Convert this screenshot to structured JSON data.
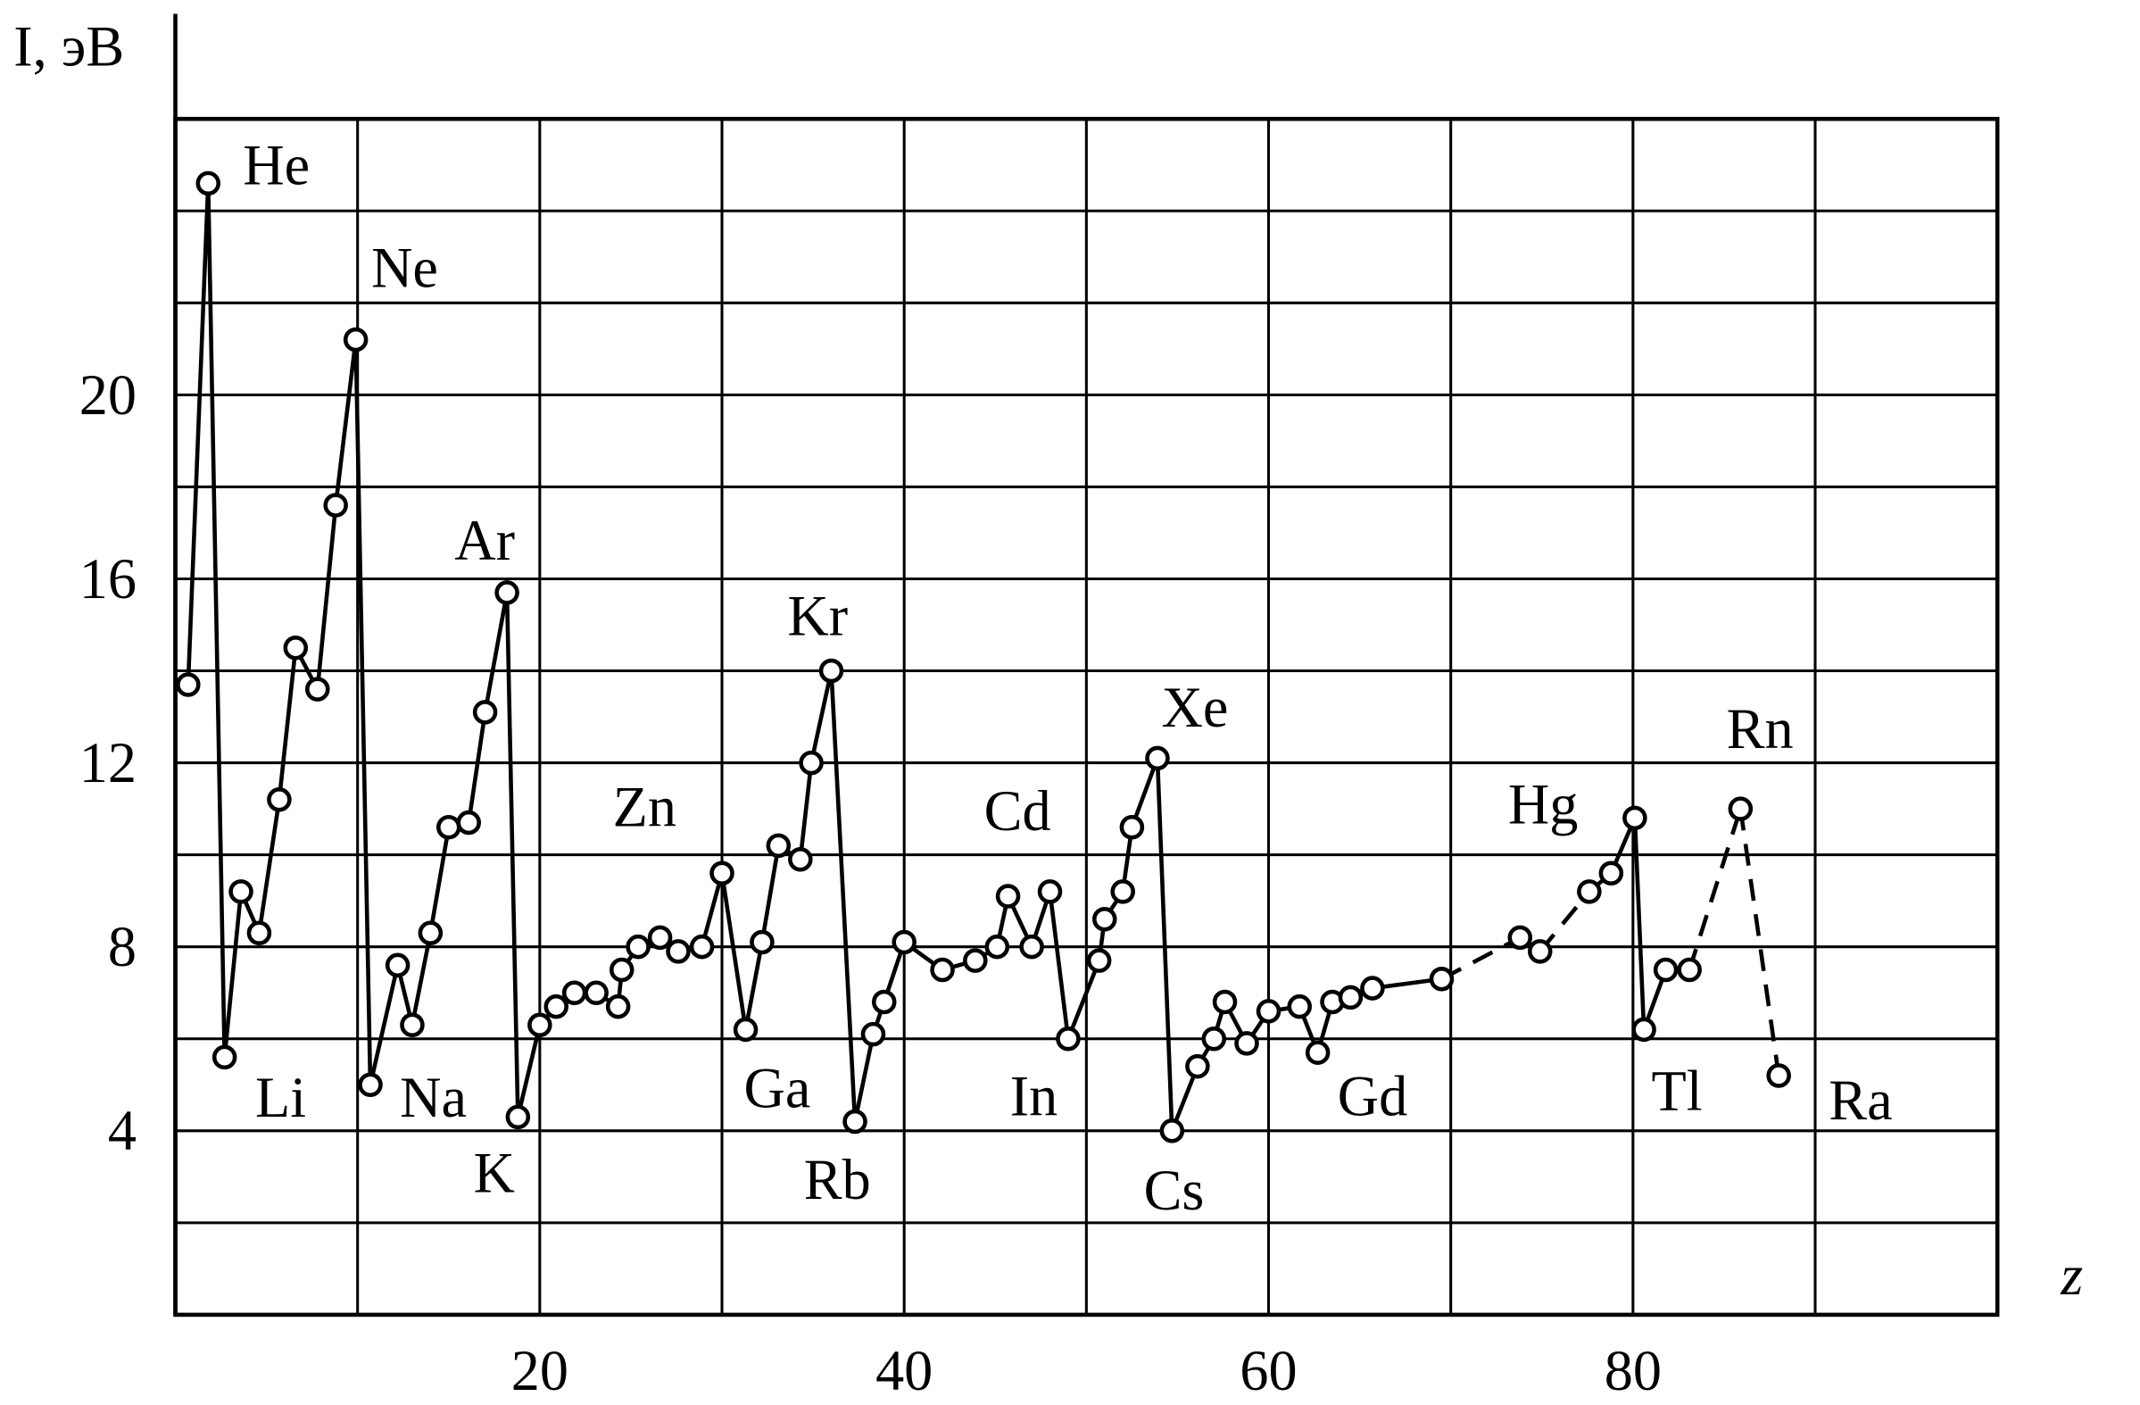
{
  "chart_data": {
    "type": "line",
    "ylabel": "I, эВ",
    "xlabel": "z",
    "x": [
      0.7,
      1.8,
      2.7,
      3.6,
      4.6,
      5.7,
      6.6,
      7.8,
      8.8,
      9.9,
      10.7,
      12.2,
      13.0,
      14.0,
      15.0,
      16.1,
      17.0,
      18.2,
      18.8,
      20.0,
      20.9,
      21.9,
      23.1,
      24.3,
      24.5,
      25.4,
      26.6,
      27.6,
      28.9,
      30.0,
      31.3,
      32.2,
      33.1,
      34.3,
      34.9,
      36.0,
      37.3,
      38.3,
      38.9,
      40.0,
      42.1,
      43.9,
      45.1,
      45.7,
      47.0,
      48.0,
      49.0,
      50.7,
      51.0,
      52.0,
      52.5,
      53.9,
      54.7,
      56.1,
      57.0,
      57.6,
      58.8,
      60.0,
      61.7,
      62.7,
      63.5,
      64.5,
      65.7,
      69.5,
      73.8,
      74.9,
      77.6,
      78.8,
      80.1,
      80.6,
      81.8,
      83.1,
      85.9,
      88.0
    ],
    "values": [
      13.7,
      24.6,
      5.6,
      9.2,
      8.3,
      11.2,
      14.5,
      13.6,
      17.6,
      21.2,
      5.0,
      7.6,
      6.3,
      8.3,
      10.6,
      10.7,
      13.1,
      15.7,
      4.3,
      6.3,
      6.7,
      7.0,
      7.0,
      6.7,
      7.5,
      8.0,
      8.2,
      7.9,
      8.0,
      9.6,
      6.2,
      8.1,
      10.2,
      9.9,
      12.0,
      14.0,
      4.2,
      6.1,
      6.8,
      8.1,
      7.5,
      7.7,
      8.0,
      9.1,
      8.0,
      9.2,
      6.0,
      7.7,
      8.6,
      9.2,
      10.6,
      12.1,
      4.0,
      5.4,
      6.0,
      6.8,
      5.9,
      6.6,
      6.7,
      5.7,
      6.8,
      6.9,
      7.1,
      7.3,
      8.2,
      7.9,
      9.2,
      9.6,
      10.8,
      6.2,
      7.5,
      7.5,
      11.0,
      5.2
    ],
    "dashed_segments": [
      63,
      65,
      71,
      72
    ],
    "annotations": [
      "He",
      "Ne",
      "Ar",
      "Kr",
      "Xe",
      "Zn",
      "Cd",
      "Hg",
      "Rn",
      "Li",
      "Na",
      "K",
      "Ga",
      "Rb",
      "In",
      "Cs",
      "Gd",
      "Tl",
      "Ra"
    ],
    "xlim": [
      0,
      100
    ],
    "ylim": [
      0,
      26
    ],
    "xticks": [
      20,
      40,
      60,
      80
    ],
    "yticks": [
      4,
      8,
      12,
      16,
      20
    ],
    "grid": true,
    "grid_step_x": 10,
    "grid_step_y": 2,
    "color": "#000000"
  }
}
